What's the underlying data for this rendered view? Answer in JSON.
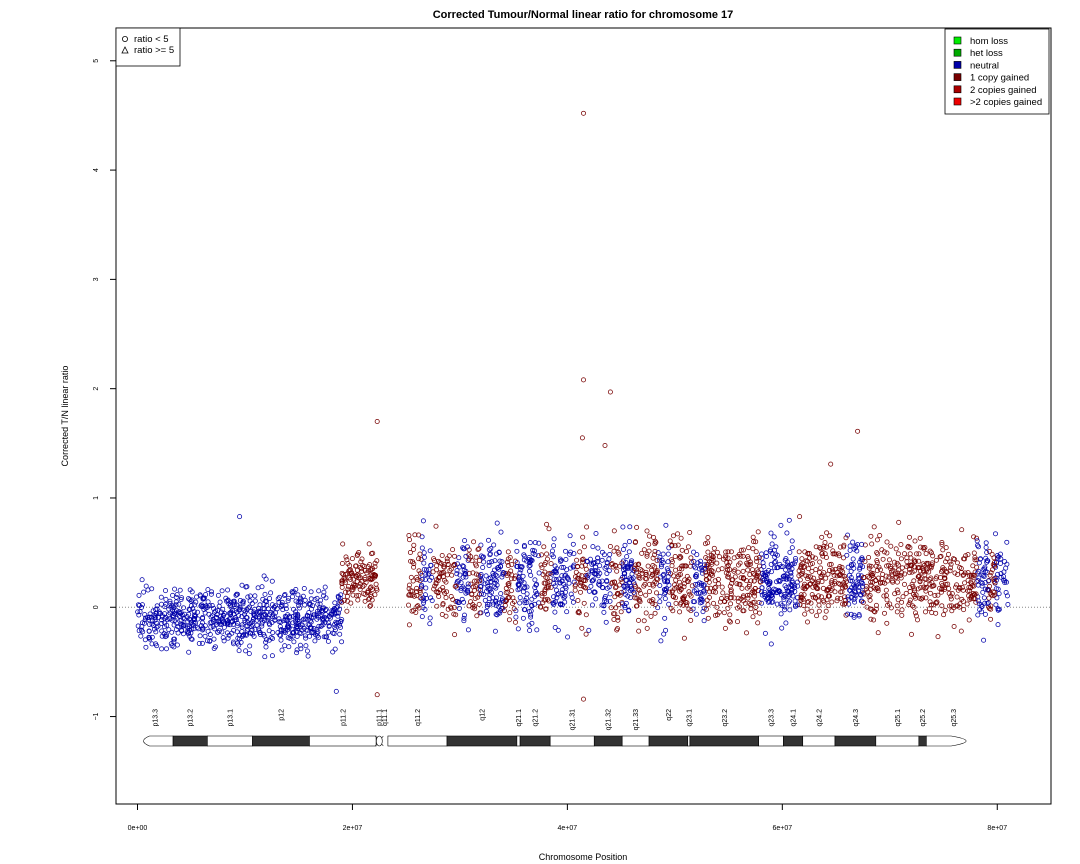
{
  "chart_data": {
    "type": "scatter",
    "title": "Corrected Tumour/Normal linear ratio for chromosome  17",
    "xlabel": "Chromosome Position",
    "ylabel": "Corrected T/N linear ratio",
    "xlim": [
      -2000000,
      85000000
    ],
    "ylim": [
      -1.8,
      5.3
    ],
    "x_ticks": [
      {
        "value": 0,
        "label": "0e+00"
      },
      {
        "value": 20000000,
        "label": "2e+07"
      },
      {
        "value": 40000000,
        "label": "4e+07"
      },
      {
        "value": 60000000,
        "label": "6e+07"
      },
      {
        "value": 80000000,
        "label": "8e+07"
      }
    ],
    "y_ticks": [
      {
        "value": -1,
        "label": "−1"
      },
      {
        "value": 0,
        "label": "0"
      },
      {
        "value": 1,
        "label": "1"
      },
      {
        "value": 2,
        "label": "2"
      },
      {
        "value": 3,
        "label": "3"
      },
      {
        "value": 4,
        "label": "4"
      },
      {
        "value": 5,
        "label": "5"
      }
    ],
    "reference_line": 0,
    "shape_legend": {
      "position": "top-left",
      "items": [
        {
          "shape": "circle",
          "label": "ratio < 5"
        },
        {
          "shape": "triangle",
          "label": "ratio >= 5"
        }
      ]
    },
    "color_legend": {
      "position": "top-right",
      "items": [
        {
          "label": "hom loss",
          "color": "#00ee00"
        },
        {
          "label": "het loss",
          "color": "#00aa00"
        },
        {
          "label": "neutral",
          "color": "#0000aa"
        },
        {
          "label": "1 copy gained",
          "color": "#770000"
        },
        {
          "label": "2 copies gained",
          "color": "#aa0000"
        },
        {
          "label": ">2 copies gained",
          "color": "#ee0000"
        }
      ]
    },
    "segments": [
      {
        "start": 0,
        "end": 19000000,
        "state": "neutral",
        "mean": -0.1
      },
      {
        "start": 19000000,
        "end": 22300000,
        "state": "1 copy gained",
        "mean": 0.25
      },
      {
        "start": 25200000,
        "end": 81000000,
        "state": "mixed 1 copy gained / neutral",
        "mean": 0.25
      }
    ],
    "outliers": [
      {
        "x": 41500000,
        "y": 4.52,
        "state": "1 copy gained"
      },
      {
        "x": 41500000,
        "y": 2.08,
        "state": "1 copy gained"
      },
      {
        "x": 44000000,
        "y": 1.97,
        "state": "1 copy gained"
      },
      {
        "x": 41400000,
        "y": 1.55,
        "state": "1 copy gained"
      },
      {
        "x": 43500000,
        "y": 1.48,
        "state": "1 copy gained"
      },
      {
        "x": 67000000,
        "y": 1.61,
        "state": "1 copy gained"
      },
      {
        "x": 22300000,
        "y": 1.7,
        "state": "1 copy gained"
      },
      {
        "x": 64500000,
        "y": 1.31,
        "state": "1 copy gained"
      },
      {
        "x": 9500000,
        "y": 0.83,
        "state": "neutral"
      },
      {
        "x": 18500000,
        "y": -0.77,
        "state": "neutral"
      },
      {
        "x": 22300000,
        "y": -0.8,
        "state": "1 copy gained"
      },
      {
        "x": 41500000,
        "y": -0.84,
        "state": "1 copy gained"
      }
    ],
    "ideogram": {
      "centromere": 22500000,
      "bands": [
        {
          "name": "p13.3",
          "start": 0,
          "end": 3300000,
          "stain": "white"
        },
        {
          "name": "p13.2",
          "start": 3300000,
          "end": 6500000,
          "stain": "dark"
        },
        {
          "name": "p13.1",
          "start": 6500000,
          "end": 10700000,
          "stain": "white"
        },
        {
          "name": "p12",
          "start": 10700000,
          "end": 16000000,
          "stain": "dark"
        },
        {
          "name": "p11.2",
          "start": 16000000,
          "end": 22200000,
          "stain": "white"
        },
        {
          "name": "p11.1",
          "start": 22200000,
          "end": 22700000,
          "stain": "white"
        },
        {
          "name": "q11.1",
          "start": 22700000,
          "end": 23300000,
          "stain": "white"
        },
        {
          "name": "q11.2",
          "start": 23300000,
          "end": 28800000,
          "stain": "white"
        },
        {
          "name": "q12",
          "start": 28800000,
          "end": 35300000,
          "stain": "dark"
        },
        {
          "name": "q21.1",
          "start": 35300000,
          "end": 35600000,
          "stain": "white"
        },
        {
          "name": "q21.2",
          "start": 35600000,
          "end": 38400000,
          "stain": "dark"
        },
        {
          "name": "q21.31",
          "start": 38400000,
          "end": 42500000,
          "stain": "white"
        },
        {
          "name": "q21.32",
          "start": 42500000,
          "end": 45100000,
          "stain": "dark"
        },
        {
          "name": "q21.33",
          "start": 45100000,
          "end": 47600000,
          "stain": "white"
        },
        {
          "name": "q22",
          "start": 47600000,
          "end": 51200000,
          "stain": "dark"
        },
        {
          "name": "q23.1",
          "start": 51200000,
          "end": 51400000,
          "stain": "white"
        },
        {
          "name": "q23.2",
          "start": 51400000,
          "end": 57800000,
          "stain": "dark"
        },
        {
          "name": "q23.3",
          "start": 57800000,
          "end": 60100000,
          "stain": "white"
        },
        {
          "name": "q24.1",
          "start": 60100000,
          "end": 61900000,
          "stain": "dark"
        },
        {
          "name": "q24.2",
          "start": 61900000,
          "end": 64900000,
          "stain": "white"
        },
        {
          "name": "q24.3",
          "start": 64900000,
          "end": 68700000,
          "stain": "dark"
        },
        {
          "name": "q25.1",
          "start": 68700000,
          "end": 72700000,
          "stain": "white"
        },
        {
          "name": "q25.2",
          "start": 72700000,
          "end": 73400000,
          "stain": "dark"
        },
        {
          "name": "q25.3",
          "start": 73400000,
          "end": 78500000,
          "stain": "white"
        }
      ]
    }
  }
}
